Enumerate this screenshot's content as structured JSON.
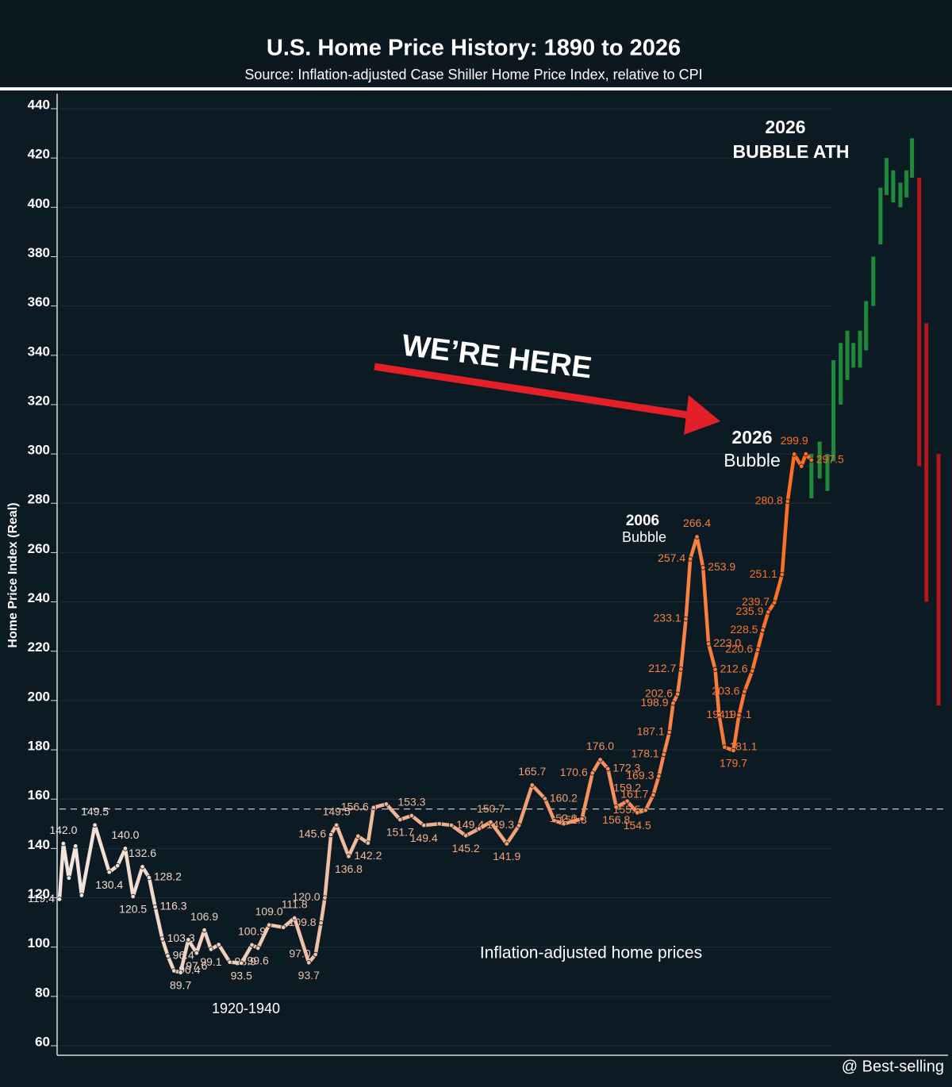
{
  "chart_data": {
    "type": "line",
    "title": "U.S. Home Price History: 1890 to 2026",
    "subtitle": "Source: Inflation-adjusted Case Shiller Home Price Index, relative to CPI",
    "y_label": "Home Price Index (Real)",
    "x": [
      1890,
      1890.7,
      1891.7,
      1892.9,
      1894,
      1896.4,
      1899,
      1900.5,
      1901.9,
      1903.3,
      1905,
      1906.2,
      1907.3,
      1908.6,
      1909.6,
      1910.7,
      1911.9,
      1913.3,
      1914.8,
      1916.2,
      1917.4,
      1918.8,
      1920.8,
      1922.9,
      1924.8,
      1925.9,
      1927.9,
      1930.5,
      1932.5,
      1935.1,
      1936.3,
      1937.3,
      1938,
      1939.1,
      1940.1,
      1942.3,
      1944,
      1945.8,
      1946.8,
      1949.1,
      1951.6,
      1953.7,
      1955.9,
      1958.7,
      1960.9,
      1963.5,
      1965.9,
      1968,
      1970.9,
      1973.1,
      1975.5,
      1977.8,
      1979.5,
      1981.2,
      1984.5,
      1986.4,
      1987.8,
      1989.2,
      1990.7,
      1992.7,
      1994.5,
      1996,
      1997.4,
      1998.4,
      1999.3,
      2000.3,
      2001,
      2001.8,
      2002.4,
      2003.3,
      2004.1,
      2005.3,
      2006.4,
      2007.4,
      2008.6,
      2009.3,
      2010.3,
      2011.9,
      2012.9,
      2013.9,
      2015.3,
      2016.3,
      2017.2,
      2018.2,
      2019.3,
      2020.7,
      2021.7,
      2022.9,
      2024.2,
      2025,
      2026
    ],
    "values": [
      119.4,
      142.0,
      128,
      141,
      121,
      149.5,
      130.4,
      133,
      140.0,
      120.5,
      132.6,
      128.2,
      116.3,
      103.3,
      96.4,
      90.4,
      89.7,
      103,
      97.6,
      106.9,
      99.1,
      101,
      93.9,
      93.5,
      100.9,
      99.6,
      109.0,
      108,
      111.8,
      93.7,
      97.0,
      109.8,
      120.0,
      145.6,
      149.5,
      136.8,
      145,
      142.2,
      156.6,
      158,
      151.7,
      153.3,
      149.4,
      150,
      149.4,
      145.2,
      148,
      150.7,
      141.9,
      149.3,
      165.7,
      160.2,
      151.3,
      150,
      152.0,
      170.6,
      176.0,
      172.3,
      156.8,
      159.2,
      154.5,
      155.5,
      161.7,
      169.3,
      178.1,
      187.1,
      198.9,
      202.6,
      212.7,
      233.1,
      257.4,
      266.4,
      253.9,
      223.0,
      212.6,
      194.1,
      181.1,
      179.7,
      194.1,
      203.6,
      212,
      220.6,
      228.5,
      235.9,
      239.7,
      251.1,
      280.8,
      299.9,
      295,
      300,
      297.5
    ],
    "value_labels": [
      "119.4",
      "142.0",
      null,
      null,
      null,
      "149.5",
      "130.4",
      null,
      "140.0",
      "120.5",
      "132.6",
      "128.2",
      "116.3",
      "103.3",
      "96.4",
      "90.4",
      "89.7",
      null,
      "97.6",
      "106.9",
      "99.1",
      null,
      "93.9",
      "93.5",
      "100.9",
      "99.6",
      "109.0",
      null,
      "111.8",
      "93.7",
      "97.0",
      "109.8",
      "120.0",
      "145.6",
      "149.5",
      "136.8",
      null,
      "142.2",
      "156.6",
      null,
      "151.7",
      "153.3",
      "149.4",
      null,
      "149.4",
      "145.2",
      null,
      "150.7",
      "141.9",
      "149.3",
      "165.7",
      "160.2",
      "151.3",
      null,
      "152.0",
      "170.6",
      "176.0",
      "172.3",
      "156.8",
      "159.2",
      "154.5",
      "155.5",
      "161.7",
      "169.3",
      "178.1",
      "187.1",
      "198.9",
      "202.6",
      "212.7",
      "233.1",
      "257.4",
      "266.4",
      "253.9",
      "223.0",
      "212.6",
      "194.1",
      "181.1",
      "179.7",
      "194.1",
      "203.6",
      null,
      "220.6",
      "228.5",
      "235.9",
      "239.7",
      "251.1",
      "280.8",
      "299.9",
      null,
      null,
      "297.5"
    ],
    "line_colors": [
      "#f3e6de",
      "#f0b08c",
      "#ff6a1c"
    ],
    "candles": {
      "x": [
        2026,
        2027.5,
        2028.9,
        2030,
        2031.3,
        2032.5,
        2033.6,
        2034.8,
        2035.9,
        2037.2,
        2038.5,
        2039.6,
        2040.8,
        2042.1,
        2043.2,
        2044.2,
        2045.5,
        2046.8,
        2049
      ],
      "open": [
        282,
        290,
        285,
        297,
        320,
        330,
        335,
        335,
        342,
        360,
        385,
        405,
        402,
        400,
        404,
        412,
        412,
        353,
        300
      ],
      "close": [
        300,
        305,
        300,
        338,
        345,
        350,
        345,
        350,
        362,
        380,
        408,
        420,
        415,
        410,
        415,
        428,
        295,
        240,
        198
      ],
      "up_color": "#1f8a3c",
      "down_color": "#b3161b"
    },
    "reference_line": 156,
    "xlim": [
      1890,
      2050
    ],
    "ylim": [
      60,
      440
    ],
    "yticks": [
      60,
      80,
      100,
      120,
      140,
      160,
      180,
      200,
      220,
      240,
      260,
      280,
      300,
      320,
      340,
      360,
      380,
      400,
      420,
      440
    ],
    "grid": true,
    "annotations": {
      "ath_year": "2026",
      "ath_text": "BUBBLE ATH",
      "here": "WE’RE HERE",
      "bubble_2026_year": "2026",
      "bubble_2026_text": "Bubble",
      "bubble_2006_year": "2006",
      "bubble_2006_text": "Bubble",
      "period": "1920-1940",
      "note": "Inflation-adjusted home prices"
    },
    "watermark": "@ Best-selling"
  }
}
